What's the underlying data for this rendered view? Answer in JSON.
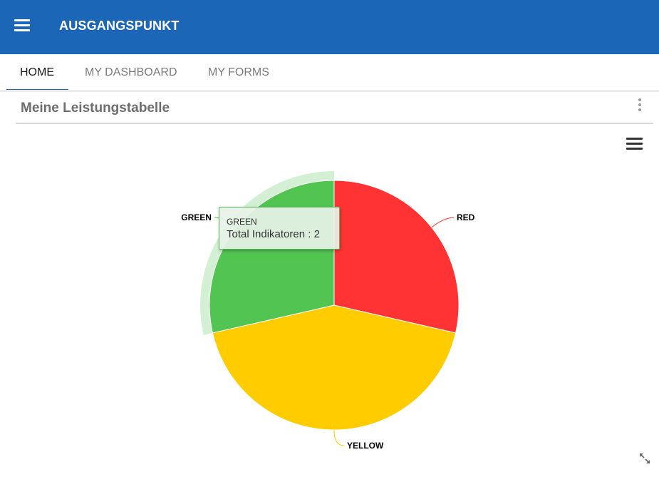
{
  "header": {
    "title": "AUSGANGSPUNKT",
    "menu_icon": "hamburger-menu-icon",
    "color": "#1c66b8"
  },
  "tabs": [
    {
      "label": "HOME",
      "active": true
    },
    {
      "label": "MY DASHBOARD",
      "active": false
    },
    {
      "label": "MY FORMS",
      "active": false
    }
  ],
  "card": {
    "title": "Meine Leistungstabelle",
    "menu_icon": "kebab-menu-icon",
    "chart_menu_icon": "chart-menu-icon",
    "expand_icon": "expand-icon"
  },
  "tooltip": {
    "name": "GREEN",
    "series": "Total Indikatoren",
    "value": 2
  },
  "chart_data": {
    "type": "pie",
    "title": "",
    "series": [
      {
        "name": "Total Indikatoren"
      }
    ],
    "categories": [
      "RED",
      "YELLOW",
      "GREEN"
    ],
    "values": [
      2,
      3,
      2
    ],
    "colors": [
      "#ff3333",
      "#ffcc00",
      "#52c452"
    ],
    "hovered": "GREEN"
  }
}
